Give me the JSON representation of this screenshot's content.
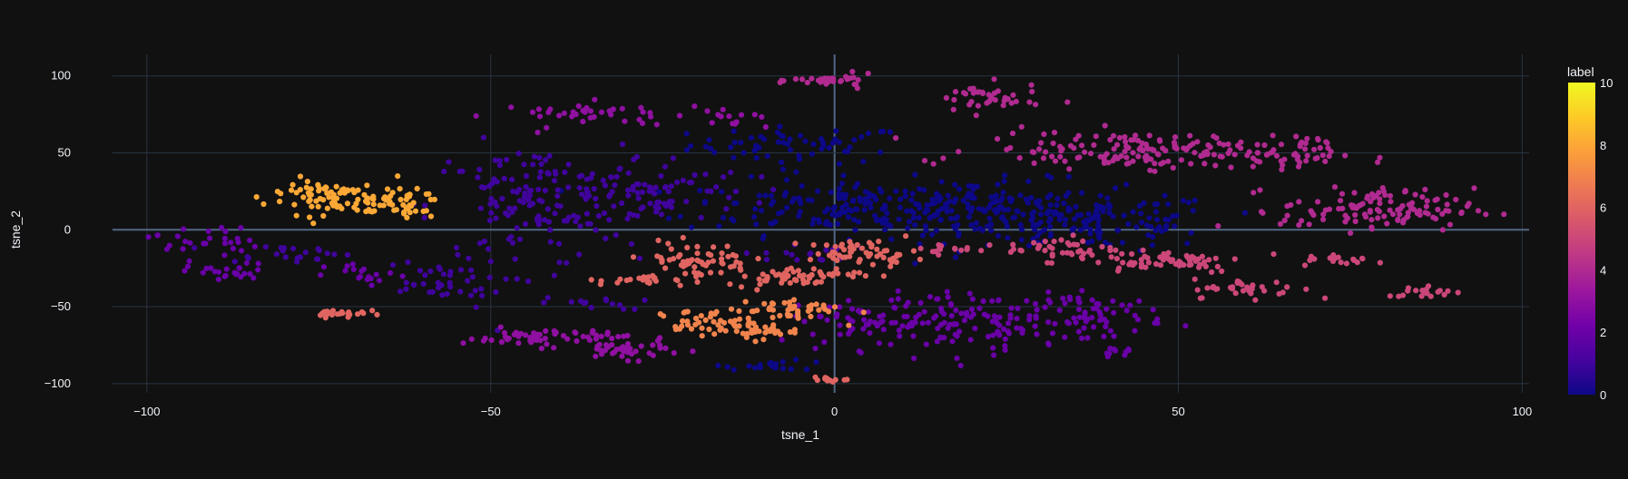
{
  "chart_data": {
    "type": "scatter",
    "title": "",
    "xlabel": "tsne_1",
    "ylabel": "tsne_2",
    "xlim": [
      -105,
      101
    ],
    "ylim": [
      -106,
      114
    ],
    "x_ticks": [
      -100,
      -50,
      0,
      50,
      100
    ],
    "x_tick_labels": [
      "−100",
      "−50",
      "0",
      "50",
      "100"
    ],
    "y_ticks": [
      -100,
      -50,
      0,
      50,
      100
    ],
    "y_tick_labels": [
      "−100",
      "−50",
      "0",
      "50",
      "100"
    ],
    "grid": true,
    "background": "#111111",
    "grid_color": "#283442",
    "colorbar": {
      "title": "label",
      "min": 0,
      "max": 10,
      "ticks": [
        0,
        2,
        4,
        6,
        8,
        10
      ],
      "tick_labels": [
        "0",
        "2",
        "4",
        "6",
        "8",
        "10"
      ],
      "colorscale": [
        "#0d0887",
        "#46039f",
        "#7201a8",
        "#9c179e",
        "#bd3786",
        "#d8576b",
        "#ed7953",
        "#fb9f3a",
        "#fdca26",
        "#f0f921"
      ]
    },
    "clusters": [
      {
        "label": 0,
        "cx": -5,
        "cy": 55,
        "sx": 8,
        "sy": 6,
        "n": 60
      },
      {
        "label": 0,
        "cx": 2,
        "cy": 15,
        "sx": 12,
        "sy": 9,
        "n": 160
      },
      {
        "label": 0,
        "cx": 22,
        "cy": 12,
        "sx": 10,
        "sy": 10,
        "n": 140
      },
      {
        "label": 0,
        "cx": 38,
        "cy": 5,
        "sx": 9,
        "sy": 9,
        "n": 120
      },
      {
        "label": 0,
        "cx": -8,
        "cy": -88,
        "sx": 4,
        "sy": 1.5,
        "n": 18
      },
      {
        "label": 1,
        "cx": -45,
        "cy": 15,
        "sx": 7,
        "sy": 20,
        "n": 120
      },
      {
        "label": 1,
        "cx": -28,
        "cy": 25,
        "sx": 8,
        "sy": 12,
        "n": 100
      },
      {
        "label": 1,
        "cx": -80,
        "cy": -15,
        "sx": 5,
        "sy": 3,
        "n": 22
      },
      {
        "label": 1,
        "cx": -58,
        "cy": -35,
        "sx": 5,
        "sy": 8,
        "n": 40
      },
      {
        "label": 1,
        "cx": -35,
        "cy": -48,
        "sx": 4,
        "sy": 2,
        "n": 14
      },
      {
        "label": 1,
        "cx": -5,
        "cy": -15,
        "sx": 4,
        "sy": 3,
        "n": 16
      },
      {
        "label": 2,
        "cx": -92,
        "cy": -7,
        "sx": 4,
        "sy": 6,
        "n": 28
      },
      {
        "label": 2,
        "cx": -88,
        "cy": -28,
        "sx": 3,
        "sy": 3,
        "n": 24
      },
      {
        "label": 2,
        "cx": -68,
        "cy": -30,
        "sx": 3,
        "sy": 4,
        "n": 18
      },
      {
        "label": 2,
        "cx": 8,
        "cy": -60,
        "sx": 7,
        "sy": 9,
        "n": 80
      },
      {
        "label": 2,
        "cx": 22,
        "cy": -60,
        "sx": 8,
        "sy": 9,
        "n": 90
      },
      {
        "label": 2,
        "cx": 38,
        "cy": -55,
        "sx": 5,
        "sy": 7,
        "n": 60
      },
      {
        "label": 2,
        "cx": 41,
        "cy": -80,
        "sx": 1.5,
        "sy": 1.5,
        "n": 10
      },
      {
        "label": 3,
        "cx": -33,
        "cy": 75,
        "sx": 8,
        "sy": 4,
        "n": 40
      },
      {
        "label": 3,
        "cx": -42,
        "cy": -70,
        "sx": 6,
        "sy": 3,
        "n": 60
      },
      {
        "label": 3,
        "cx": -30,
        "cy": -78,
        "sx": 4,
        "sy": 3,
        "n": 35
      },
      {
        "label": 3,
        "cx": -15,
        "cy": 70,
        "sx": 3,
        "sy": 3,
        "n": 12
      },
      {
        "label": 4,
        "cx": 0,
        "cy": 97,
        "sx": 3,
        "sy": 2,
        "n": 30
      },
      {
        "label": 4,
        "cx": 22,
        "cy": 85,
        "sx": 4,
        "sy": 5,
        "n": 40
      },
      {
        "label": 4,
        "cx": 45,
        "cy": 52,
        "sx": 12,
        "sy": 6,
        "n": 160
      },
      {
        "label": 4,
        "cx": 65,
        "cy": 48,
        "sx": 5,
        "sy": 4,
        "n": 35
      },
      {
        "label": 4,
        "cx": 79,
        "cy": 13,
        "sx": 7,
        "sy": 7,
        "n": 120
      },
      {
        "label": 5,
        "cx": 33,
        "cy": -12,
        "sx": 4,
        "sy": 4,
        "n": 40
      },
      {
        "label": 5,
        "cx": 48,
        "cy": -20,
        "sx": 6,
        "sy": 4,
        "n": 60
      },
      {
        "label": 5,
        "cx": 60,
        "cy": -38,
        "sx": 4,
        "sy": 3,
        "n": 35
      },
      {
        "label": 5,
        "cx": 74,
        "cy": -20,
        "sx": 3,
        "sy": 2,
        "n": 18
      },
      {
        "label": 5,
        "cx": 86,
        "cy": -40,
        "sx": 3,
        "sy": 2,
        "n": 18
      },
      {
        "label": 5,
        "cx": 17,
        "cy": -13,
        "sx": 3,
        "sy": 2,
        "n": 15
      },
      {
        "label": 6,
        "cx": -72,
        "cy": -54,
        "sx": 2,
        "sy": 1.5,
        "n": 24
      },
      {
        "label": 6,
        "cx": -20,
        "cy": -20,
        "sx": 4,
        "sy": 6,
        "n": 60
      },
      {
        "label": 6,
        "cx": -6,
        "cy": -30,
        "sx": 5,
        "sy": 3,
        "n": 60
      },
      {
        "label": 6,
        "cx": 4,
        "cy": -15,
        "sx": 4,
        "sy": 4,
        "n": 55
      },
      {
        "label": 6,
        "cx": -28,
        "cy": -33,
        "sx": 3,
        "sy": 1.5,
        "n": 20
      },
      {
        "label": 6,
        "cx": -1,
        "cy": -97,
        "sx": 1.5,
        "sy": 1,
        "n": 12
      },
      {
        "label": 7,
        "cx": -20,
        "cy": -60,
        "sx": 3,
        "sy": 4,
        "n": 30
      },
      {
        "label": 7,
        "cx": -12,
        "cy": -65,
        "sx": 3,
        "sy": 3,
        "n": 40
      },
      {
        "label": 7,
        "cx": -7,
        "cy": -52,
        "sx": 4,
        "sy": 4,
        "n": 45
      },
      {
        "label": 8,
        "cx": -75,
        "cy": 22,
        "sx": 4,
        "sy": 6,
        "n": 70
      },
      {
        "label": 8,
        "cx": -65,
        "cy": 17,
        "sx": 4,
        "sy": 5,
        "n": 55
      }
    ]
  }
}
